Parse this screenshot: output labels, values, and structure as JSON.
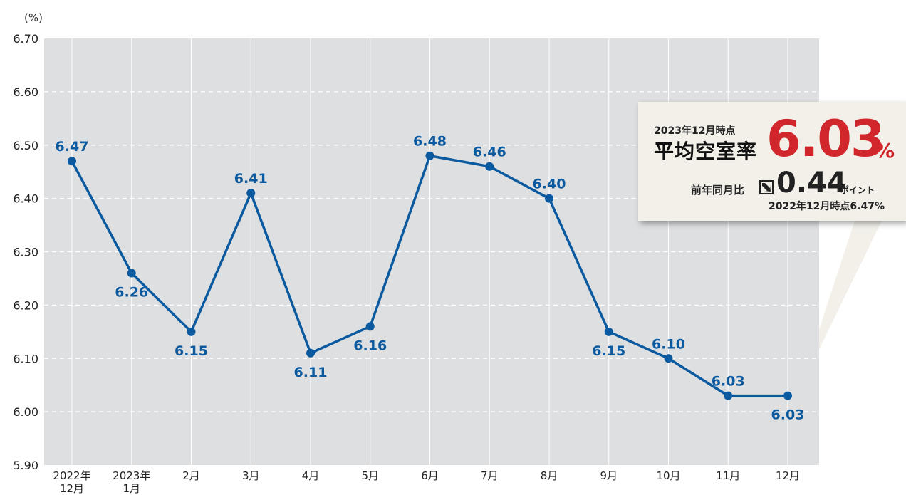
{
  "chart_data": {
    "type": "line",
    "unit_label": "(%)",
    "categories": [
      [
        "2022年",
        "12月"
      ],
      [
        "2023年",
        "1月"
      ],
      [
        "2月"
      ],
      [
        "3月"
      ],
      [
        "4月"
      ],
      [
        "5月"
      ],
      [
        "6月"
      ],
      [
        "7月"
      ],
      [
        "8月"
      ],
      [
        "9月"
      ],
      [
        "10月"
      ],
      [
        "11月"
      ],
      [
        "12月"
      ]
    ],
    "values": [
      6.47,
      6.26,
      6.15,
      6.41,
      6.11,
      6.16,
      6.48,
      6.46,
      6.4,
      6.15,
      6.1,
      6.03,
      6.03
    ],
    "value_labels": [
      "6.47",
      "6.26",
      "6.15",
      "6.41",
      "6.11",
      "6.16",
      "6.48",
      "6.46",
      "6.40",
      "6.15",
      "6.10",
      "6.03",
      "6.03"
    ],
    "label_positions": [
      "above",
      "below",
      "below",
      "above",
      "below",
      "below",
      "above",
      "above",
      "above",
      "below",
      "above",
      "above",
      "below"
    ],
    "yticks": [
      "6.70",
      "6.60",
      "6.50",
      "6.40",
      "6.30",
      "6.20",
      "6.10",
      "6.00",
      "5.90"
    ],
    "ylim": [
      5.9,
      6.7
    ],
    "grid": true,
    "colors": {
      "line": "#0b5aa0",
      "plot_bg": "#dedfe1",
      "grid": "#ffffff",
      "label": "#0b5aa0"
    }
  },
  "callout": {
    "date": "2023年12月時点",
    "title": "平均空室率",
    "value": "6.03",
    "value_unit": "%",
    "yoy_label": "前年同月比",
    "yoy_icon": "down-right-arrow-icon",
    "yoy_value": "0.44",
    "yoy_unit": "ポイント",
    "previous": "2022年12月時点6.47%",
    "accent_color": "#d0262c"
  }
}
